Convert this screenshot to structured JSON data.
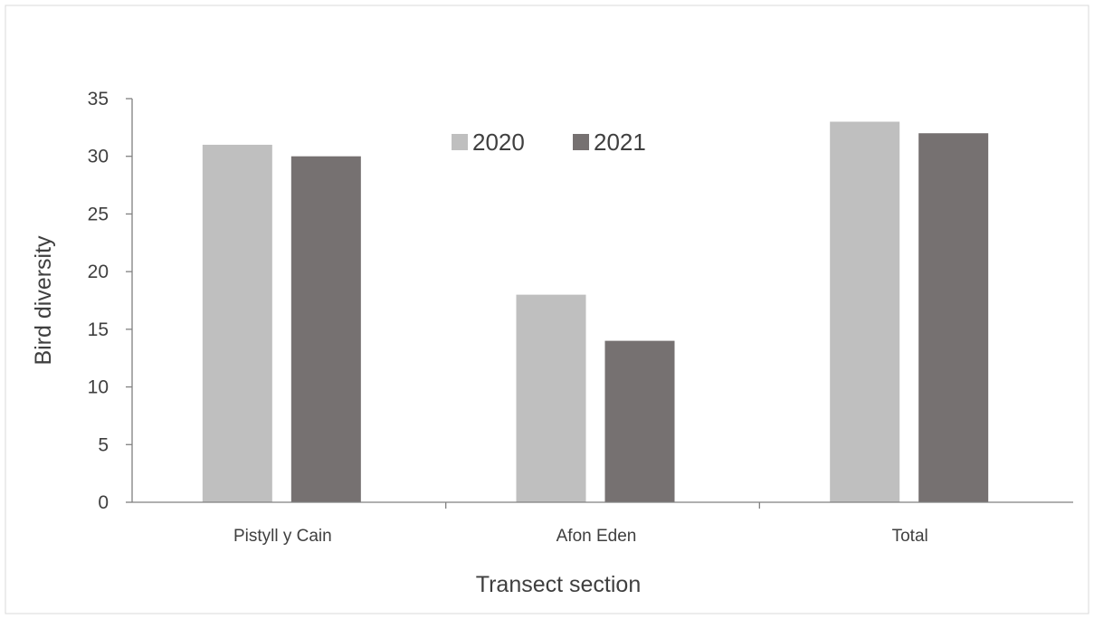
{
  "chart_data": {
    "type": "bar",
    "categories": [
      "Pistyll y Cain",
      "Afon Eden",
      "Total"
    ],
    "series": [
      {
        "name": "2020",
        "values": [
          31,
          18,
          33
        ],
        "color": "#bfbfbf"
      },
      {
        "name": "2021",
        "values": [
          30,
          14,
          32
        ],
        "color": "#767171"
      }
    ],
    "xlabel": "Transect section",
    "ylabel": "Bird diversity",
    "ylim": [
      0,
      35
    ],
    "yticks": [
      0,
      5,
      10,
      15,
      20,
      25,
      30,
      35
    ],
    "grid": false,
    "legend_position": "top-center"
  }
}
